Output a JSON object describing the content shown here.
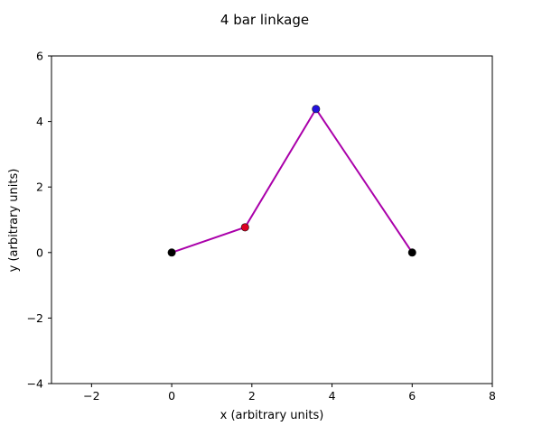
{
  "chart_data": {
    "type": "line",
    "title": "4 bar linkage",
    "xlabel": "x (arbitrary units)",
    "ylabel": "y (arbitrary units)",
    "xlim": [
      -3,
      8
    ],
    "ylim": [
      -4,
      6
    ],
    "xticks": [
      -2,
      0,
      2,
      4,
      6,
      8
    ],
    "yticks": [
      -4,
      -2,
      0,
      2,
      4,
      6
    ],
    "xtick_labels": [
      "−2",
      "0",
      "2",
      "4",
      "6",
      "8"
    ],
    "ytick_labels": [
      "−4",
      "−2",
      "0",
      "2",
      "4",
      "6"
    ],
    "grid": false,
    "series": [
      {
        "x": [
          0,
          1.83,
          3.6,
          6
        ],
        "y": [
          0,
          0.77,
          4.38,
          0
        ],
        "color": "#aa00aa"
      }
    ],
    "joints": [
      {
        "x": 0,
        "y": 0,
        "color": "#000000"
      },
      {
        "x": 1.83,
        "y": 0.77,
        "color": "#dd0022"
      },
      {
        "x": 3.6,
        "y": 4.38,
        "color": "#2211dd"
      },
      {
        "x": 6,
        "y": 0,
        "color": "#000000"
      }
    ]
  }
}
